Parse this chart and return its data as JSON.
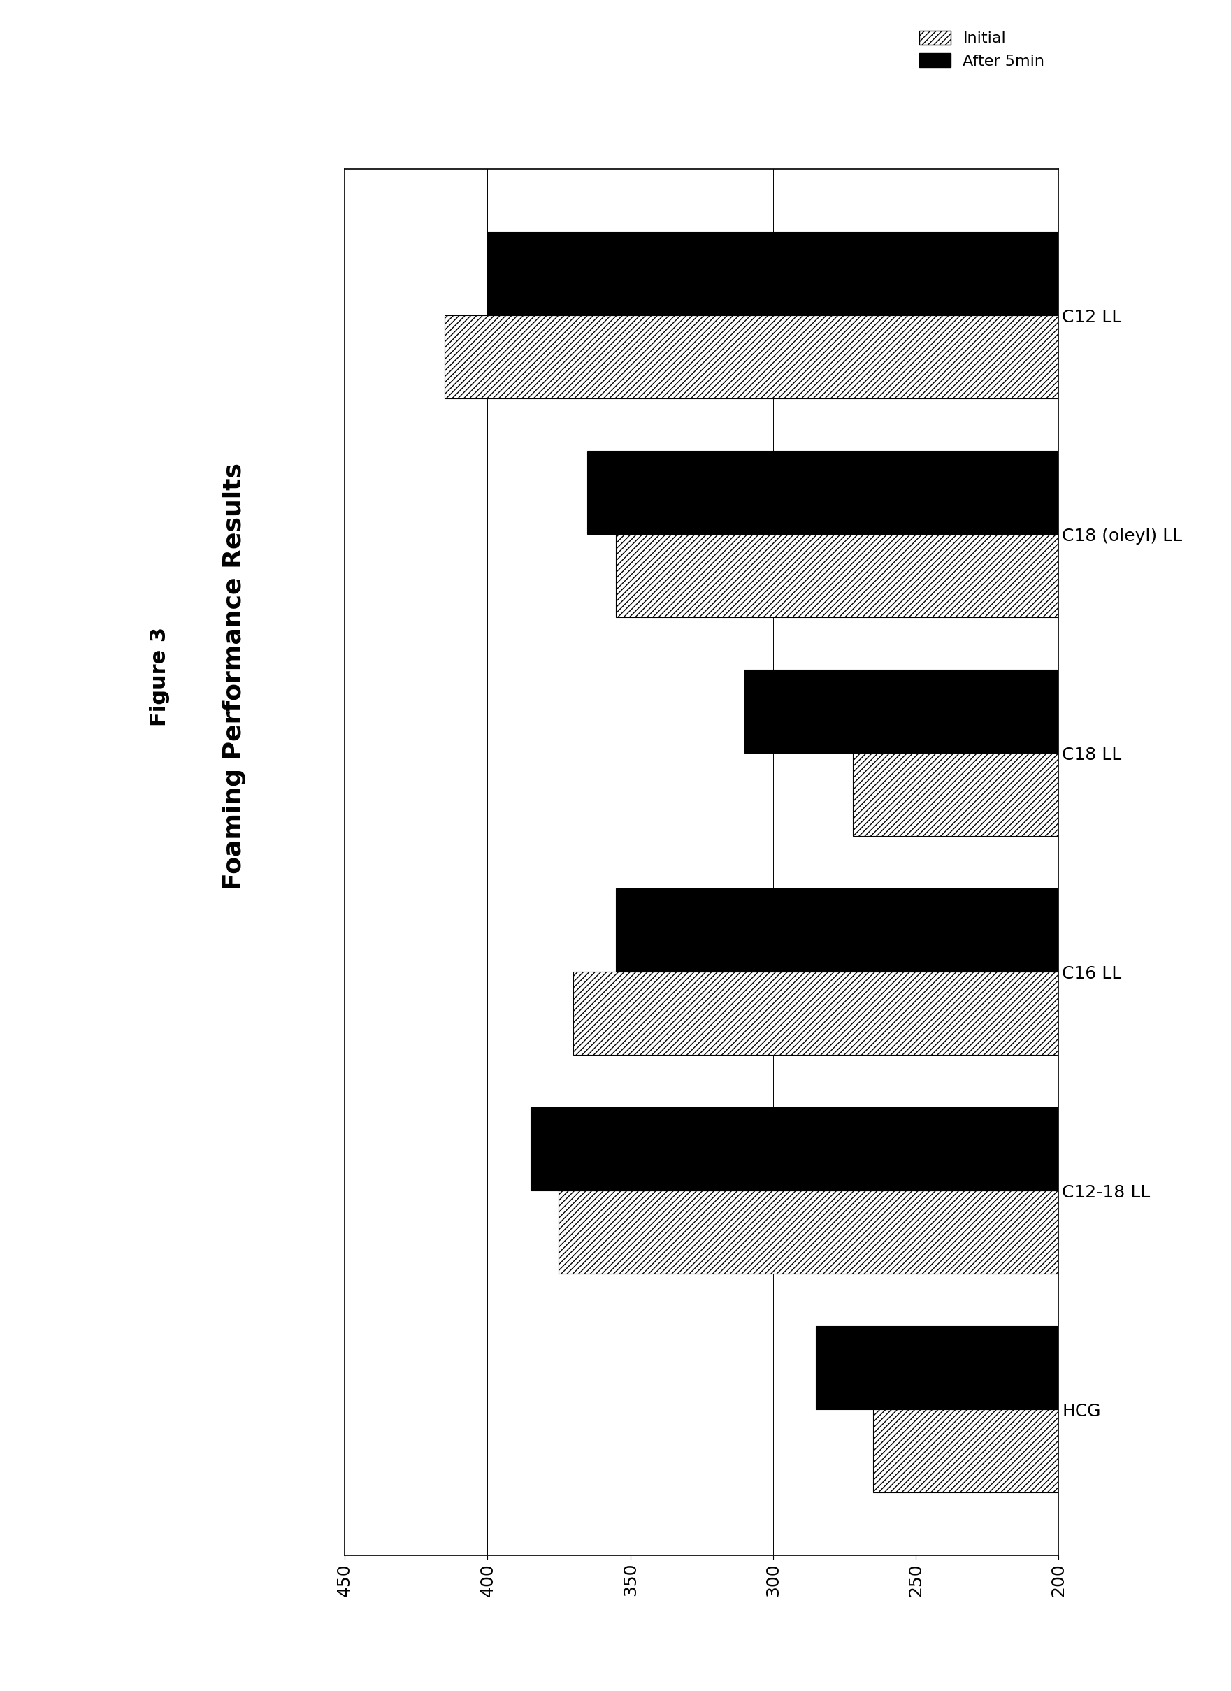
{
  "title": "Figure 3",
  "subtitle": "Foaming Performance Results",
  "categories": [
    "HCG",
    "C12-18 LL",
    "C16 LL",
    "C18 LL",
    "C18 (oleyl) LL",
    "C12 LL"
  ],
  "initial_values": [
    265,
    375,
    370,
    272,
    355,
    415
  ],
  "after5min_values": [
    285,
    385,
    355,
    310,
    365,
    400
  ],
  "xlim_min": 200,
  "xlim_max": 450,
  "xticks": [
    450,
    400,
    350,
    300,
    250,
    200
  ],
  "legend_labels": [
    "Initial",
    "After 5min"
  ],
  "hatch_pattern": "////",
  "initial_color": "white",
  "initial_edgecolor": "black",
  "after5min_color": "black",
  "after5min_edgecolor": "black",
  "background_color": "white",
  "bar_height": 0.38,
  "title_fontsize": 22,
  "subtitle_fontsize": 26,
  "tick_fontsize": 18,
  "legend_fontsize": 16,
  "category_fontsize": 18
}
